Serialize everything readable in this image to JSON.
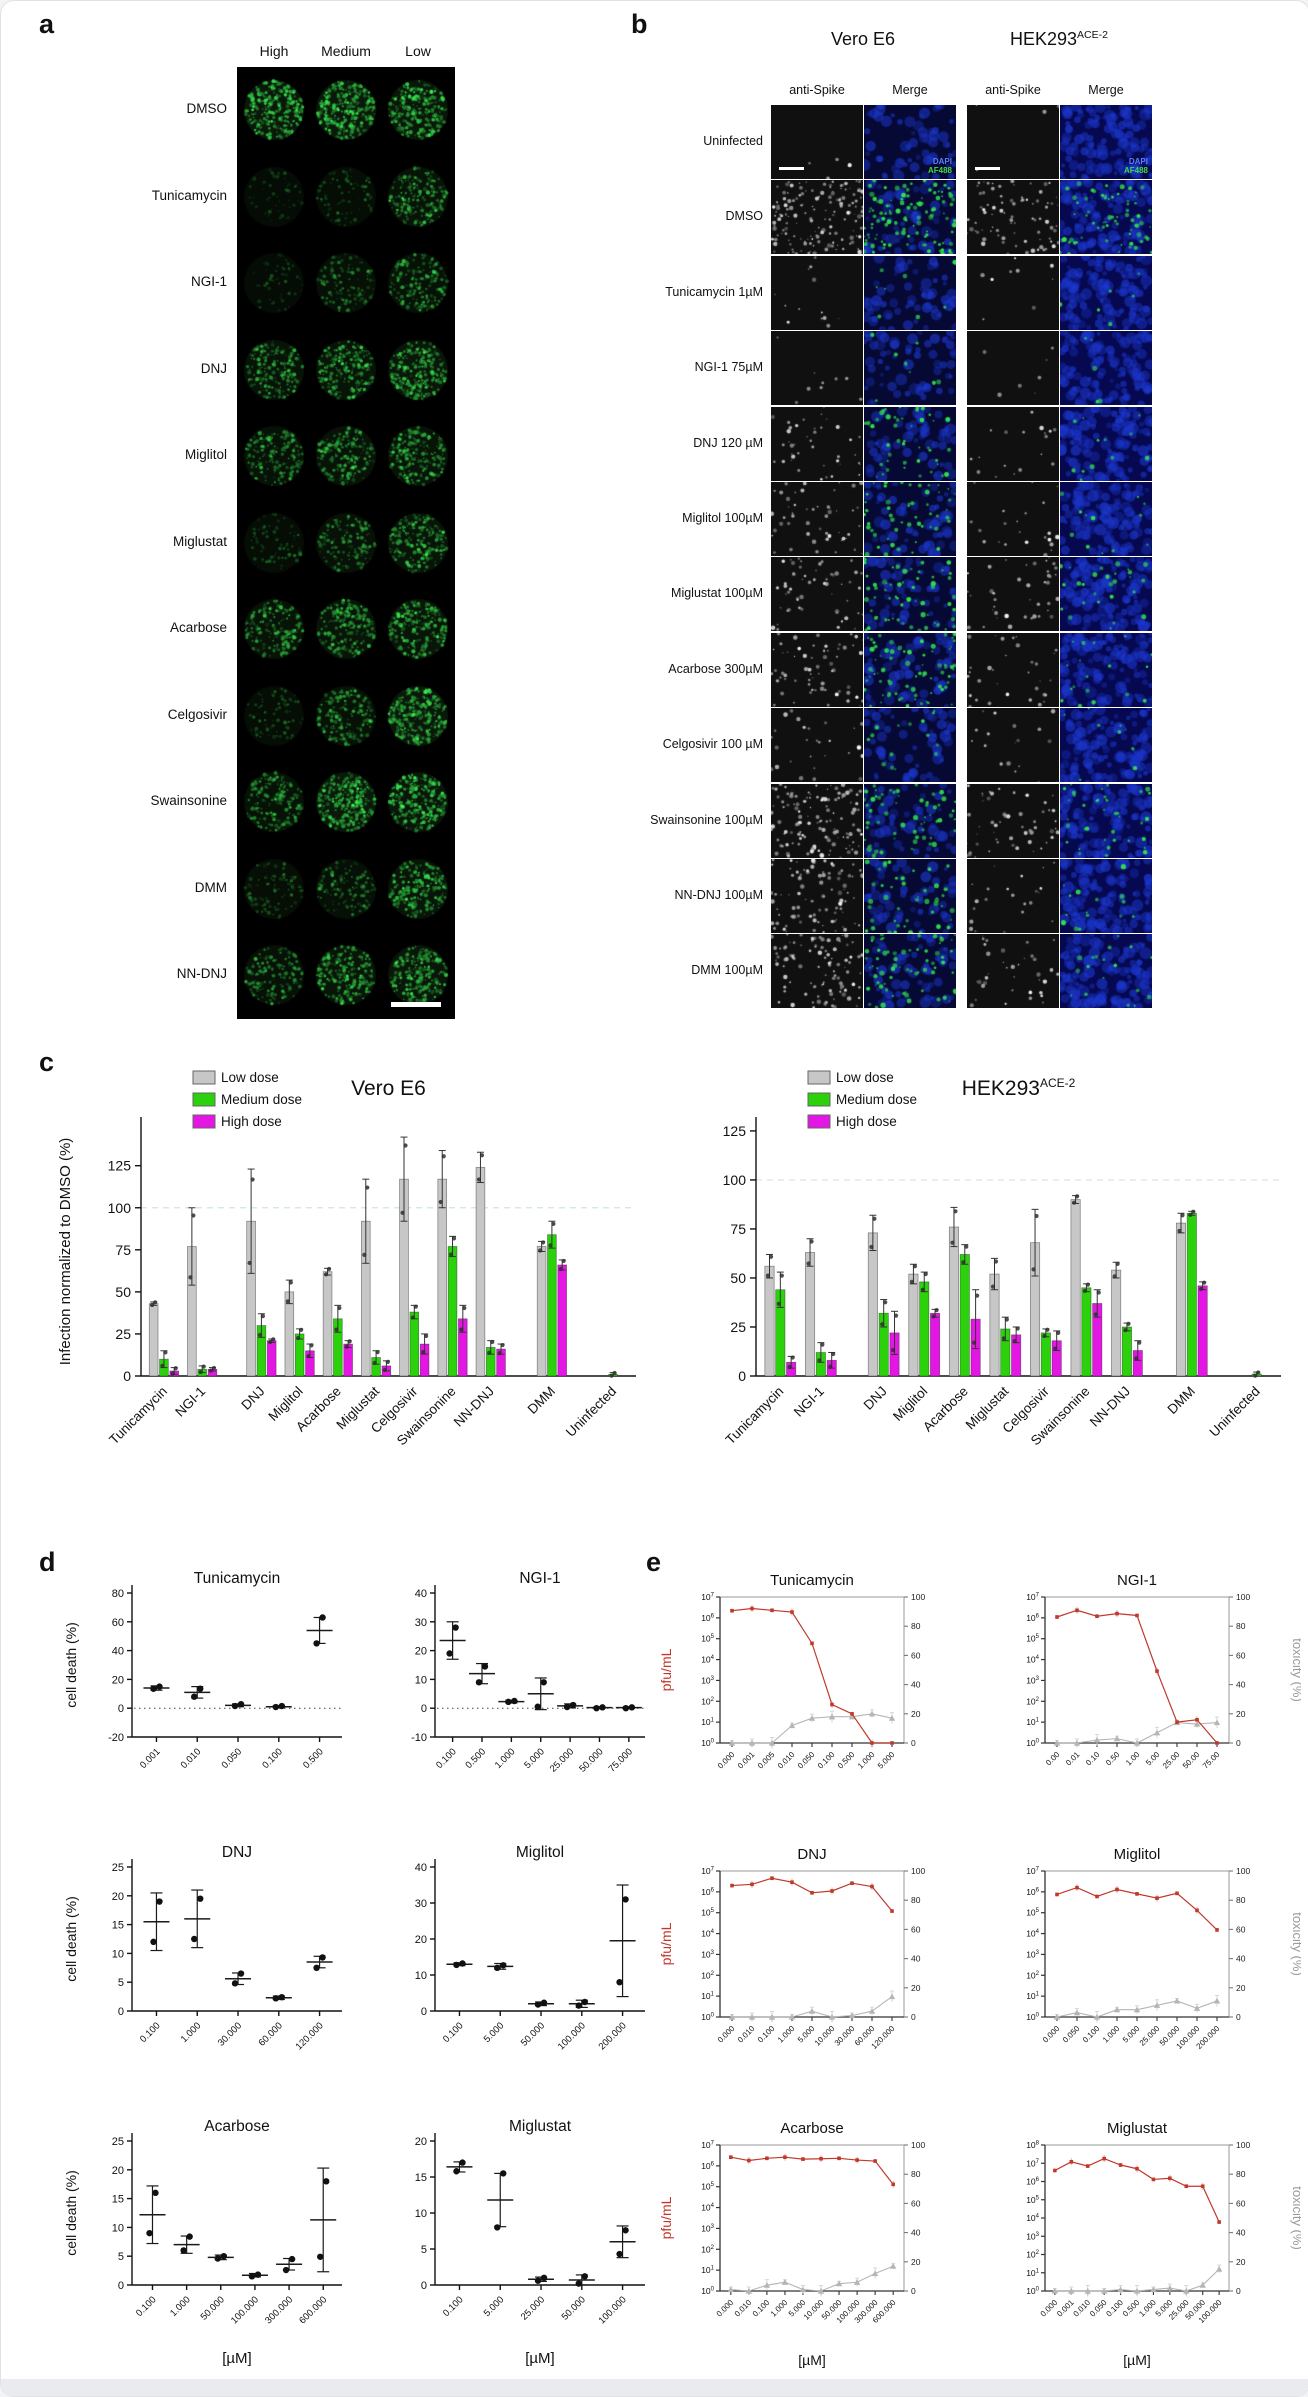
{
  "page": {
    "background": "#ffffff",
    "frame_color": "#dfe3e8"
  },
  "panels": {
    "a": {
      "label": "a",
      "dose_headers": [
        "High",
        "Medium",
        "Low"
      ],
      "rows": [
        {
          "label": "DMSO",
          "wells": [
            0.8,
            0.85,
            0.75
          ]
        },
        {
          "label": "Tunicamycin",
          "wells": [
            0.05,
            0.12,
            0.5
          ]
        },
        {
          "label": "NGI-1",
          "wells": [
            0.04,
            0.28,
            0.42
          ]
        },
        {
          "label": "DNJ",
          "wells": [
            0.5,
            0.55,
            0.65
          ]
        },
        {
          "label": "Miglitol",
          "wells": [
            0.45,
            0.5,
            0.55
          ]
        },
        {
          "label": "Miglustat",
          "wells": [
            0.12,
            0.35,
            0.55
          ]
        },
        {
          "label": "Acarbose",
          "wells": [
            0.5,
            0.55,
            0.6
          ]
        },
        {
          "label": "Celgosivir",
          "wells": [
            0.12,
            0.45,
            0.8
          ]
        },
        {
          "label": "Swainsonine",
          "wells": [
            0.45,
            0.85,
            0.7
          ]
        },
        {
          "label": "DMM",
          "wells": [
            0.18,
            0.3,
            0.6
          ]
        },
        {
          "label": "NN-DNJ",
          "wells": [
            0.4,
            0.6,
            0.65
          ]
        }
      ]
    },
    "b": {
      "label": "b",
      "cell_lines": [
        {
          "name": "Vero E6",
          "sup": ""
        },
        {
          "name": "HEK293",
          "sup": "ACE-2"
        }
      ],
      "stain_headers": [
        "anti-Spike",
        "Merge",
        "anti-Spike",
        "Merge"
      ],
      "merge_legend": {
        "dapi": "DAPI",
        "af488": "AF488"
      },
      "merge_legend_colors": {
        "dapi": "#5f7dff",
        "af488": "#43d943"
      },
      "merge_blue": [
        0.5,
        1.0
      ],
      "rows": [
        {
          "label": "Uninfected",
          "vero_spike": 0.02,
          "vero_green": 0.0,
          "hek_spike": 0.02,
          "hek_green": 0.0
        },
        {
          "label": "DMSO",
          "vero_spike": 0.85,
          "vero_green": 0.75,
          "hek_spike": 0.45,
          "hek_green": 0.45
        },
        {
          "label": "Tunicamycin 1µM",
          "vero_spike": 0.07,
          "vero_green": 0.05,
          "hek_spike": 0.05,
          "hek_green": 0.04
        },
        {
          "label": "NGI-1 75µM",
          "vero_spike": 0.05,
          "vero_green": 0.06,
          "hek_spike": 0.04,
          "hek_green": 0.03
        },
        {
          "label": "DNJ 120 µM",
          "vero_spike": 0.22,
          "vero_green": 0.3,
          "hek_spike": 0.1,
          "hek_green": 0.08
        },
        {
          "label": "Miglitol 100µM",
          "vero_spike": 0.28,
          "vero_green": 0.35,
          "hek_spike": 0.12,
          "hek_green": 0.08
        },
        {
          "label": "Miglustat 100µM",
          "vero_spike": 0.3,
          "vero_green": 0.4,
          "hek_spike": 0.22,
          "hek_green": 0.18
        },
        {
          "label": "Acarbose 300µM",
          "vero_spike": 0.35,
          "vero_green": 0.5,
          "hek_spike": 0.18,
          "hek_green": 0.12
        },
        {
          "label": "Celgosivir 100 µM",
          "vero_spike": 0.15,
          "vero_green": 0.1,
          "hek_spike": 0.1,
          "hek_green": 0.06
        },
        {
          "label": "Swainsonine 100µM",
          "vero_spike": 0.7,
          "vero_green": 0.45,
          "hek_spike": 0.3,
          "hek_green": 0.25
        },
        {
          "label": "NN-DNJ 100µM",
          "vero_spike": 0.5,
          "vero_green": 0.3,
          "hek_spike": 0.12,
          "hek_green": 0.1
        },
        {
          "label": "DMM 100µM",
          "vero_spike": 0.55,
          "vero_green": 0.45,
          "hek_spike": 0.2,
          "hek_green": 0.12
        }
      ]
    },
    "c": {
      "label": "c"
    },
    "d": {
      "label": "d"
    },
    "e": {
      "label": "e"
    }
  },
  "chart_data": {
    "c": [
      {
        "type": "bar",
        "title": "Vero E6",
        "title_sup": "",
        "ylabel": "Infection normalized to DMSO (%)",
        "ylim": [
          0,
          148
        ],
        "yticks": [
          0,
          25,
          50,
          75,
          100,
          125
        ],
        "ref_line": 100,
        "legend": [
          "Low dose",
          "Medium dose",
          "High dose"
        ],
        "series_colors": [
          "#c7c7c7",
          "#2bd10a",
          "#e316e3"
        ],
        "categories": [
          "Tunicamycin",
          "NGI-1",
          "DNJ",
          "Miglitol",
          "Acarbose",
          "Miglustat",
          "Celgosivir",
          "Swainsonine",
          "NN-DNJ",
          "DMM",
          "Uninfected"
        ],
        "series": [
          {
            "name": "Low dose",
            "values": [
              43,
              77,
              92,
              50,
              62,
              92,
              117,
              117,
              124,
              77,
              0
            ],
            "err": [
              1,
              23,
              31,
              7,
              2,
              25,
              25,
              17,
              9,
              3,
              0
            ]
          },
          {
            "name": "Medium dose",
            "values": [
              10,
              4,
              30,
              25,
              34,
              11,
              38,
              77,
              17,
              84,
              1
            ],
            "err": [
              5,
              2,
              7,
              3,
              8,
              4,
              4,
              6,
              4,
              8,
              1
            ]
          },
          {
            "name": "High dose",
            "values": [
              3,
              4,
              21,
              15,
              19,
              6,
              19,
              34,
              16,
              66,
              0
            ],
            "err": [
              2,
              1,
              1,
              4,
              2,
              3,
              6,
              8,
              3,
              3,
              0
            ]
          }
        ]
      },
      {
        "type": "bar",
        "title": "HEK293",
        "title_sup": "ACE-2",
        "ylabel": "",
        "ylim": [
          0,
          127
        ],
        "yticks": [
          0,
          25,
          50,
          75,
          100,
          125
        ],
        "ref_line": 100,
        "legend": [
          "Low dose",
          "Medium dose",
          "High dose"
        ],
        "series_colors": [
          "#c7c7c7",
          "#2bd10a",
          "#e316e3"
        ],
        "categories": [
          "Tunicamycin",
          "NGI-1",
          "DNJ",
          "Miglitol",
          "Acarbose",
          "Miglustat",
          "Celgosivir",
          "Swainsonine",
          "NN-DNJ",
          "DMM",
          "Uninfected"
        ],
        "series": [
          {
            "name": "Low dose",
            "values": [
              56,
              63,
              73,
              52,
              76,
              52,
              68,
              90,
              54,
              78,
              0
            ],
            "err": [
              6,
              7,
              9,
              5,
              10,
              8,
              17,
              2,
              4,
              5,
              0
            ]
          },
          {
            "name": "Medium dose",
            "values": [
              44,
              12,
              32,
              48,
              62,
              24,
              22,
              45,
              25,
              83,
              1
            ],
            "err": [
              9,
              5,
              7,
              5,
              5,
              6,
              2,
              2,
              2,
              1,
              1
            ]
          },
          {
            "name": "High dose",
            "values": [
              7,
              8,
              22,
              32,
              29,
              21,
              18,
              37,
              13,
              46,
              0
            ],
            "err": [
              3,
              4,
              11,
              2,
              15,
              4,
              5,
              7,
              5,
              2,
              0
            ]
          }
        ]
      }
    ],
    "d": [
      {
        "type": "scatter",
        "title": "Tunicamycin",
        "ylabel": "cell death (%)",
        "ylim": [
          -20,
          80
        ],
        "ystep": 20,
        "zero_line": true,
        "x": [
          "0.001",
          "0.010",
          "0.050",
          "0.100",
          "0.500"
        ],
        "means": [
          14,
          11,
          2,
          1,
          54
        ],
        "errs": [
          1.5,
          4,
          1,
          0.8,
          9
        ],
        "points": [
          [
            13.5,
            15
          ],
          [
            8,
            13.5
          ],
          [
            1.5,
            2.8
          ],
          [
            0.8,
            1.5
          ],
          [
            45,
            63
          ]
        ]
      },
      {
        "type": "scatter",
        "title": "NGI-1",
        "ylabel": "",
        "ylim": [
          -10,
          40
        ],
        "ystep": 10,
        "zero_line": true,
        "x": [
          "0.100",
          "0.500",
          "1.000",
          "5.000",
          "25.000",
          "50.000",
          "75.000"
        ],
        "means": [
          23.5,
          12,
          2.3,
          5,
          0.8,
          0.2,
          0.2
        ],
        "errs": [
          6.5,
          3.5,
          0.5,
          5.5,
          0.7,
          0.3,
          0.3
        ],
        "points": [
          [
            19,
            28
          ],
          [
            9,
            14.5
          ],
          [
            2.2,
            2.5
          ],
          [
            0.5,
            9
          ],
          [
            0.4,
            1.1
          ],
          [
            0,
            0.3
          ],
          [
            0,
            0.3
          ]
        ]
      },
      {
        "type": "scatter",
        "title": "DNJ",
        "ylabel": "cell death (%)",
        "ylim": [
          0,
          25
        ],
        "ystep": 5,
        "zero_line": false,
        "x": [
          "0.100",
          "1.000",
          "30.000",
          "60.000",
          "120.000"
        ],
        "means": [
          15.5,
          16,
          5.6,
          2.3,
          8.5
        ],
        "errs": [
          5,
          5,
          1,
          0.3,
          1
        ],
        "points": [
          [
            12,
            19
          ],
          [
            12.5,
            19.5
          ],
          [
            4.8,
            6.5
          ],
          [
            2.2,
            2.4
          ],
          [
            7.5,
            9.3
          ]
        ]
      },
      {
        "type": "scatter",
        "title": "Miglitol",
        "ylabel": "",
        "ylim": [
          0,
          40
        ],
        "ystep": 10,
        "zero_line": false,
        "x": [
          "0.100",
          "5.000",
          "50.000",
          "100.000",
          "200.000"
        ],
        "means": [
          13,
          12.4,
          2,
          2,
          19.5
        ],
        "errs": [
          0.4,
          0.8,
          0.5,
          1,
          15.5
        ],
        "points": [
          [
            12.8,
            13.2
          ],
          [
            12,
            12.7
          ],
          [
            1.8,
            2.3
          ],
          [
            1.5,
            2.5
          ],
          [
            8,
            31
          ]
        ]
      },
      {
        "type": "scatter",
        "title": "Acarbose",
        "ylabel": "cell death (%)",
        "ylim": [
          0,
          25
        ],
        "ystep": 5,
        "zero_line": false,
        "xlabel": "[µM]",
        "x": [
          "0.100",
          "1.000",
          "50.000",
          "100.000",
          "300.000",
          "600.000"
        ],
        "means": [
          12.2,
          7,
          4.8,
          1.7,
          3.6,
          11.3
        ],
        "errs": [
          5,
          1.5,
          0.4,
          0.3,
          1,
          9
        ],
        "points": [
          [
            9,
            16
          ],
          [
            6,
            8.4
          ],
          [
            4.6,
            5
          ],
          [
            1.5,
            1.8
          ],
          [
            2.6,
            4.5
          ],
          [
            4.9,
            18
          ]
        ]
      },
      {
        "type": "scatter",
        "title": "Miglustat",
        "ylabel": "",
        "ylim": [
          0,
          20
        ],
        "ystep": 5,
        "zero_line": false,
        "xlabel": "[µM]",
        "x": [
          "0.100",
          "5.000",
          "25.000",
          "50.000",
          "100.000"
        ],
        "means": [
          16.4,
          11.8,
          0.8,
          0.7,
          6
        ],
        "errs": [
          0.7,
          3.7,
          0.3,
          0.7,
          2.2
        ],
        "points": [
          [
            15.8,
            17
          ],
          [
            8,
            15.5
          ],
          [
            0.6,
            1
          ],
          [
            0.2,
            1.2
          ],
          [
            4.3,
            7.6
          ]
        ]
      }
    ],
    "e": [
      {
        "type": "line-dual",
        "title": "Tunicamycin",
        "left_label": "pfu/mL",
        "right_label": "",
        "ymax_exp": 7,
        "x": [
          "0.000",
          "0.001",
          "0.005",
          "0.010",
          "0.050",
          "0.100",
          "0.500",
          "1.000",
          "5.000"
        ],
        "pfu": [
          2200000.0,
          2800000.0,
          2300000.0,
          1900000.0,
          60000.0,
          70,
          25,
          1,
          1
        ],
        "tox": [
          0,
          0,
          0,
          12,
          17,
          18,
          18,
          20,
          17
        ]
      },
      {
        "type": "line-dual",
        "title": "NGI-1",
        "left_label": "",
        "right_label": "toxicity (%)",
        "ymax_exp": 7,
        "x": [
          "0.00",
          "0.01",
          "0.10",
          "0.50",
          "1.00",
          "5.00",
          "25.00",
          "50.00",
          "75.00"
        ],
        "pfu": [
          1100000.0,
          2300000.0,
          1200000.0,
          1600000.0,
          1300000.0,
          2800,
          10,
          13,
          1
        ],
        "tox": [
          0,
          0,
          2,
          3,
          0,
          7,
          14,
          13,
          14
        ]
      },
      {
        "type": "line-dual",
        "title": "DNJ",
        "left_label": "pfu/mL",
        "right_label": "",
        "ymax_exp": 7,
        "x": [
          "0.000",
          "0.010",
          "0.100",
          "1.000",
          "5.000",
          "10.000",
          "30.000",
          "60.000",
          "120.000"
        ],
        "pfu": [
          2000000.0,
          2300000.0,
          4500000.0,
          2900000.0,
          900000.0,
          1100000.0,
          2600000.0,
          1800000.0,
          120000.0
        ],
        "tox": [
          0,
          0,
          0,
          0,
          4,
          0,
          1,
          4,
          14
        ]
      },
      {
        "type": "line-dual",
        "title": "Miglitol",
        "left_label": "",
        "right_label": "toxicity (%)",
        "ymax_exp": 7,
        "x": [
          "0.000",
          "0.050",
          "0.100",
          "1.000",
          "5.000",
          "25.000",
          "50.000",
          "100.000",
          "200.000"
        ],
        "pfu": [
          750000.0,
          1600000.0,
          600000.0,
          1300000.0,
          800000.0,
          500000.0,
          850000.0,
          130000.0,
          15000.0
        ],
        "tox": [
          0,
          3,
          0,
          5,
          5,
          8,
          11,
          6,
          11
        ]
      },
      {
        "type": "line-dual",
        "title": "Acarbose",
        "left_label": "pfu/mL",
        "right_label": "",
        "ymax_exp": 7,
        "xlabel": "[µM]",
        "x": [
          "0.000",
          "0.010",
          "0.100",
          "1.000",
          "5.000",
          "10.000",
          "50.000",
          "100.000",
          "300.000",
          "600.000"
        ],
        "pfu": [
          2600000.0,
          1800000.0,
          2300000.0,
          2600000.0,
          2100000.0,
          2200000.0,
          2300000.0,
          1900000.0,
          1700000.0,
          130000.0
        ],
        "tox": [
          1,
          0,
          4,
          6,
          1,
          0,
          5,
          6,
          12,
          17
        ]
      },
      {
        "type": "line-dual",
        "title": "Miglustat",
        "left_label": "",
        "right_label": "toxicity (%)",
        "ymax_exp": 8,
        "xlabel": "[µM]",
        "x": [
          "0.000",
          "0.001",
          "0.010",
          "0.050",
          "0.100",
          "0.500",
          "1.000",
          "5.000",
          "25.000",
          "50.000",
          "100.000"
        ],
        "pfu": [
          4000000.0,
          12000000.0,
          7000000.0,
          18000000.0,
          8000000.0,
          5000000.0,
          1300000.0,
          1500000.0,
          550000.0,
          550000.0,
          6000.0
        ],
        "tox": [
          0,
          0,
          0,
          0,
          1,
          0,
          1,
          2,
          0,
          4,
          15
        ]
      }
    ]
  }
}
